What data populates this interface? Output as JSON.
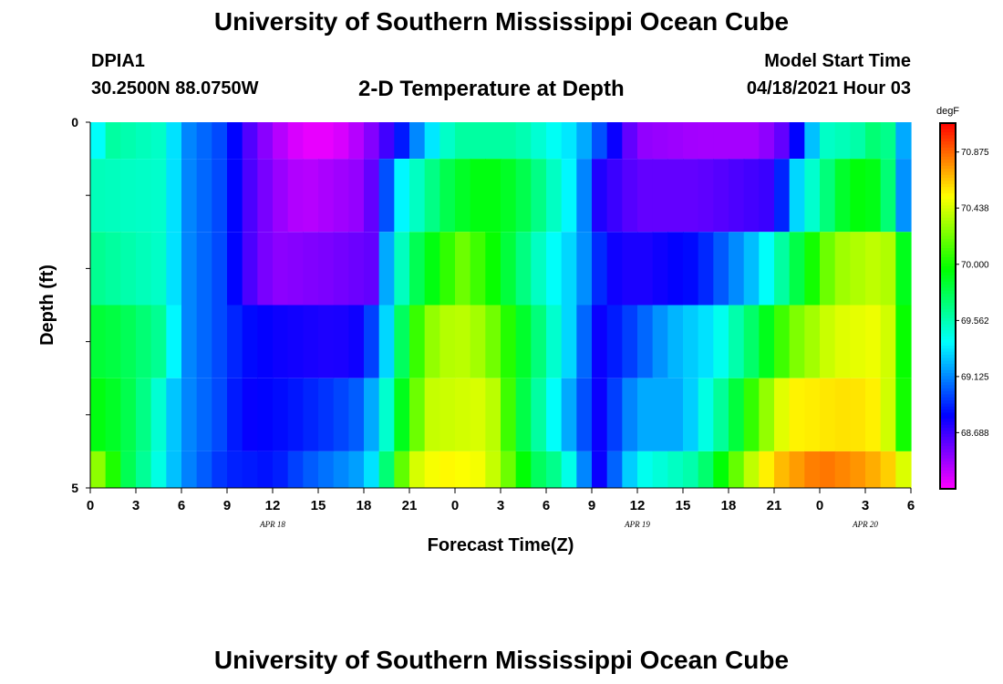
{
  "header": {
    "title": "University of Southern Mississippi Ocean Cube",
    "station": "DPIA1",
    "coords": "30.2500N  88.0750W",
    "plot_title": "2-D Temperature at Depth",
    "model_start_label": "Model Start Time",
    "model_start_value": "04/18/2021 Hour 03"
  },
  "footer": {
    "title": "University of Southern Mississippi Ocean Cube"
  },
  "chart_data": {
    "type": "heatmap",
    "title": "2-D Temperature at Depth",
    "xlabel": "Forecast Time(Z)",
    "ylabel": "Depth (ft)",
    "units": "degF",
    "colormap": "rainbow (magenta-blue-cyan-green-yellow-orange-red)",
    "x_tick_labels": [
      "0",
      "3",
      "6",
      "9",
      "12",
      "15",
      "18",
      "21",
      "0",
      "3",
      "6",
      "9",
      "12",
      "15",
      "18",
      "21",
      "0",
      "3",
      "6"
    ],
    "date_labels": [
      {
        "text": "APR 18",
        "tick_index": 4
      },
      {
        "text": "APR 19",
        "tick_index": 12
      },
      {
        "text": "APR 20",
        "tick_index": 17
      }
    ],
    "y_tick_labels": [
      "0",
      "5"
    ],
    "ylim": [
      0,
      5
    ],
    "colorbar": {
      "min": 68.25,
      "max": 71.1,
      "ticks": [
        "70.875",
        "70.438",
        "70.000",
        "69.562",
        "69.125",
        "68.688"
      ]
    },
    "rows": [
      {
        "depth_range": [
          0,
          0.5
        ],
        "keyframes": [
          [
            0,
            69.3
          ],
          [
            1.5,
            69.6
          ],
          [
            5,
            69.5
          ],
          [
            6,
            69.15
          ],
          [
            9,
            68.95
          ],
          [
            10,
            68.7
          ],
          [
            12,
            68.45
          ],
          [
            14,
            68.3
          ],
          [
            16,
            68.3
          ],
          [
            18,
            68.45
          ],
          [
            20,
            68.75
          ],
          [
            22,
            69.25
          ],
          [
            24,
            69.6
          ],
          [
            28,
            69.6
          ],
          [
            32,
            69.3
          ],
          [
            34,
            68.9
          ],
          [
            36,
            68.5
          ],
          [
            40,
            68.45
          ],
          [
            44,
            68.45
          ],
          [
            46,
            68.65
          ],
          [
            47,
            69.0
          ],
          [
            48,
            69.5
          ],
          [
            51,
            69.6
          ],
          [
            52,
            69.8
          ],
          [
            53,
            69.5
          ],
          [
            54,
            68.9
          ]
        ]
      },
      {
        "depth_range": [
          0.5,
          1.5
        ],
        "keyframes": [
          [
            0,
            69.55
          ],
          [
            5,
            69.5
          ],
          [
            6,
            69.15
          ],
          [
            9,
            68.95
          ],
          [
            10,
            68.7
          ],
          [
            12,
            68.5
          ],
          [
            14,
            68.4
          ],
          [
            18,
            68.5
          ],
          [
            19,
            68.7
          ],
          [
            20,
            69.3
          ],
          [
            22,
            69.6
          ],
          [
            24,
            69.85
          ],
          [
            26,
            69.95
          ],
          [
            28,
            69.85
          ],
          [
            30,
            69.6
          ],
          [
            32,
            69.3
          ],
          [
            33.5,
            68.75
          ],
          [
            36,
            68.6
          ],
          [
            40,
            68.6
          ],
          [
            45,
            68.7
          ],
          [
            46.5,
            69.3
          ],
          [
            48,
            69.6
          ],
          [
            50,
            69.95
          ],
          [
            52,
            69.9
          ],
          [
            53,
            69.5
          ],
          [
            54,
            68.8
          ]
        ]
      },
      {
        "depth_range": [
          1.5,
          2.5
        ],
        "keyframes": [
          [
            0,
            69.65
          ],
          [
            5,
            69.5
          ],
          [
            6,
            69.15
          ],
          [
            9,
            68.95
          ],
          [
            10,
            68.7
          ],
          [
            12,
            68.5
          ],
          [
            16,
            68.55
          ],
          [
            18.5,
            68.6
          ],
          [
            19.5,
            69.2
          ],
          [
            21,
            69.7
          ],
          [
            23,
            70.0
          ],
          [
            24.5,
            70.2
          ],
          [
            26,
            70.05
          ],
          [
            28,
            69.75
          ],
          [
            30,
            69.45
          ],
          [
            32,
            69.25
          ],
          [
            34,
            68.8
          ],
          [
            36,
            68.75
          ],
          [
            40,
            68.85
          ],
          [
            44,
            69.3
          ],
          [
            46,
            69.7
          ],
          [
            48,
            70.1
          ],
          [
            49,
            70.3
          ],
          [
            52,
            70.4
          ],
          [
            53,
            70.3
          ],
          [
            54,
            69.5
          ]
        ]
      },
      {
        "depth_range": [
          2.5,
          3.5
        ],
        "keyframes": [
          [
            0,
            69.85
          ],
          [
            2,
            69.8
          ],
          [
            5,
            69.6
          ],
          [
            6,
            69.15
          ],
          [
            9,
            68.95
          ],
          [
            10,
            68.85
          ],
          [
            12,
            68.8
          ],
          [
            16,
            68.75
          ],
          [
            18,
            68.8
          ],
          [
            19.5,
            69.3
          ],
          [
            20.5,
            69.75
          ],
          [
            22,
            70.25
          ],
          [
            24,
            70.4
          ],
          [
            26,
            70.3
          ],
          [
            28,
            69.95
          ],
          [
            30,
            69.6
          ],
          [
            31.5,
            69.3
          ],
          [
            33.5,
            68.8
          ],
          [
            36,
            69.0
          ],
          [
            38,
            69.2
          ],
          [
            41,
            69.35
          ],
          [
            44,
            69.8
          ],
          [
            46,
            70.2
          ],
          [
            49,
            70.45
          ],
          [
            52,
            70.5
          ],
          [
            53,
            70.35
          ],
          [
            54,
            69.6
          ]
        ]
      },
      {
        "depth_range": [
          3.5,
          4.5
        ],
        "keyframes": [
          [
            0,
            69.95
          ],
          [
            2,
            69.85
          ],
          [
            4,
            69.6
          ],
          [
            6,
            69.15
          ],
          [
            9,
            68.95
          ],
          [
            10,
            68.8
          ],
          [
            13,
            68.85
          ],
          [
            16,
            68.95
          ],
          [
            18,
            69.05
          ],
          [
            19.5,
            69.5
          ],
          [
            21,
            70.1
          ],
          [
            22.5,
            70.4
          ],
          [
            26,
            70.45
          ],
          [
            27,
            70.3
          ],
          [
            28,
            69.9
          ],
          [
            30,
            69.5
          ],
          [
            31.5,
            69.2
          ],
          [
            33.5,
            68.8
          ],
          [
            36,
            69.2
          ],
          [
            39,
            69.2
          ],
          [
            42,
            69.7
          ],
          [
            44,
            70.2
          ],
          [
            46,
            70.55
          ],
          [
            50,
            70.6
          ],
          [
            52,
            70.55
          ],
          [
            53,
            70.3
          ],
          [
            54,
            69.7
          ]
        ]
      },
      {
        "depth_range": [
          4.5,
          5
        ],
        "keyframes": [
          [
            0,
            70.35
          ],
          [
            1,
            70.2
          ],
          [
            2,
            69.85
          ],
          [
            4,
            69.55
          ],
          [
            6,
            69.15
          ],
          [
            9,
            68.9
          ],
          [
            12,
            68.85
          ],
          [
            14,
            69.0
          ],
          [
            16,
            69.1
          ],
          [
            18,
            69.2
          ],
          [
            19,
            69.45
          ],
          [
            20,
            69.95
          ],
          [
            21,
            70.4
          ],
          [
            23,
            70.55
          ],
          [
            26,
            70.5
          ],
          [
            28,
            70.1
          ],
          [
            29,
            69.8
          ],
          [
            31,
            69.6
          ],
          [
            33.5,
            68.8
          ],
          [
            36,
            69.4
          ],
          [
            40,
            69.6
          ],
          [
            43,
            70.3
          ],
          [
            45,
            70.65
          ],
          [
            48,
            70.85
          ],
          [
            51,
            70.75
          ],
          [
            53,
            70.6
          ],
          [
            54,
            70.3
          ]
        ]
      }
    ]
  },
  "colors": {
    "background": "#ffffff",
    "text": "#000000"
  }
}
